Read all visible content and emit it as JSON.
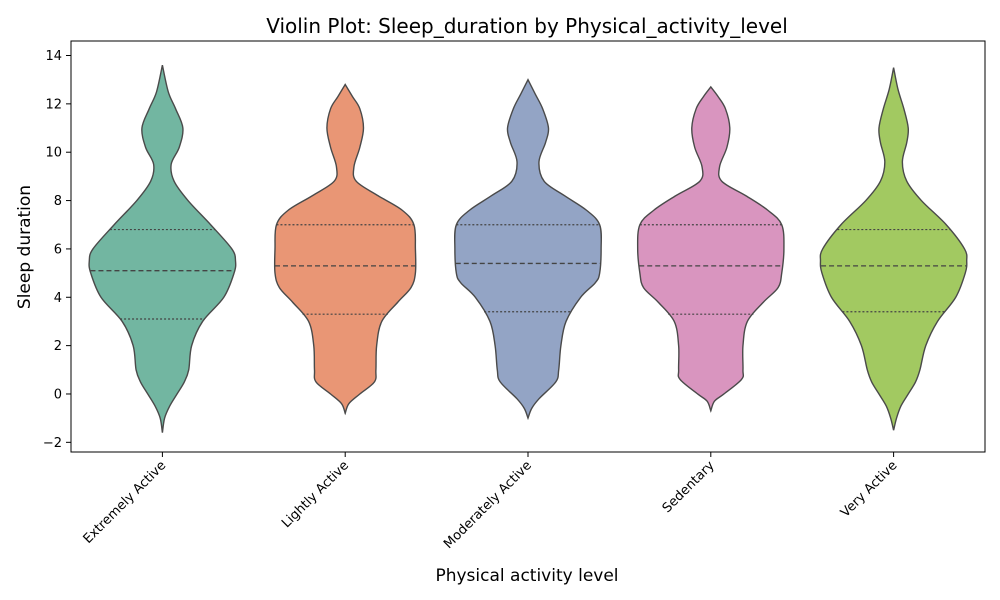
{
  "chart_data": {
    "type": "violin",
    "title": "Violin Plot: Sleep_duration by Physical_activity_level",
    "xlabel": "Physical activity level",
    "ylabel": "Sleep duration",
    "ylim": [
      -2.4,
      14.6
    ],
    "yticks": [
      -2,
      0,
      2,
      4,
      6,
      8,
      10,
      12,
      14
    ],
    "ytick_labels": [
      "−2",
      "0",
      "2",
      "4",
      "6",
      "8",
      "10",
      "12",
      "14"
    ],
    "grid": false,
    "inner": "quartile",
    "categories": [
      "Extremely Active",
      "Lightly Active",
      "Moderately Active",
      "Sedentary",
      "Very Active"
    ],
    "series": [
      {
        "category": "Extremely Active",
        "color": "#72b6a1",
        "median": 5.1,
        "q1": 3.1,
        "q3": 6.8,
        "profile": [
          [
            -1.6,
            0.0
          ],
          [
            -1.0,
            0.03
          ],
          [
            -0.5,
            0.1
          ],
          [
            0.0,
            0.2
          ],
          [
            0.5,
            0.3
          ],
          [
            1.0,
            0.36
          ],
          [
            2.0,
            0.4
          ],
          [
            3.0,
            0.55
          ],
          [
            4.0,
            0.84
          ],
          [
            5.0,
            0.98
          ],
          [
            5.5,
            1.0
          ],
          [
            6.0,
            0.95
          ],
          [
            7.0,
            0.66
          ],
          [
            8.0,
            0.35
          ],
          [
            8.8,
            0.16
          ],
          [
            9.5,
            0.12
          ],
          [
            10.2,
            0.23
          ],
          [
            11.0,
            0.28
          ],
          [
            11.8,
            0.18
          ],
          [
            12.5,
            0.08
          ],
          [
            13.6,
            0.0
          ]
        ]
      },
      {
        "category": "Lightly Active",
        "color": "#e99675",
        "median": 5.3,
        "q1": 3.3,
        "q3": 7.0,
        "profile": [
          [
            -0.8,
            0.0
          ],
          [
            -0.4,
            0.05
          ],
          [
            0.0,
            0.2
          ],
          [
            0.5,
            0.4
          ],
          [
            1.0,
            0.42
          ],
          [
            2.0,
            0.43
          ],
          [
            3.0,
            0.5
          ],
          [
            3.8,
            0.72
          ],
          [
            4.4,
            0.9
          ],
          [
            5.0,
            0.96
          ],
          [
            6.0,
            0.96
          ],
          [
            7.0,
            0.94
          ],
          [
            7.6,
            0.78
          ],
          [
            8.2,
            0.45
          ],
          [
            8.8,
            0.15
          ],
          [
            9.4,
            0.12
          ],
          [
            10.2,
            0.2
          ],
          [
            11.0,
            0.25
          ],
          [
            11.8,
            0.2
          ],
          [
            12.3,
            0.1
          ],
          [
            12.8,
            0.0
          ]
        ]
      },
      {
        "category": "Moderately Active",
        "color": "#93a4c5",
        "median": 5.4,
        "q1": 3.4,
        "q3": 7.0,
        "profile": [
          [
            -1.0,
            0.0
          ],
          [
            -0.6,
            0.05
          ],
          [
            -0.2,
            0.15
          ],
          [
            0.5,
            0.38
          ],
          [
            1.0,
            0.42
          ],
          [
            2.0,
            0.45
          ],
          [
            3.0,
            0.52
          ],
          [
            4.0,
            0.72
          ],
          [
            4.6,
            0.92
          ],
          [
            5.0,
            0.98
          ],
          [
            6.0,
            1.0
          ],
          [
            7.0,
            0.98
          ],
          [
            7.6,
            0.8
          ],
          [
            8.2,
            0.5
          ],
          [
            8.8,
            0.22
          ],
          [
            9.6,
            0.15
          ],
          [
            10.4,
            0.24
          ],
          [
            11.0,
            0.28
          ],
          [
            11.8,
            0.2
          ],
          [
            12.4,
            0.1
          ],
          [
            13.0,
            0.0
          ]
        ]
      },
      {
        "category": "Sedentary",
        "color": "#d995bf",
        "median": 5.3,
        "q1": 3.3,
        "q3": 7.0,
        "profile": [
          [
            -0.7,
            0.0
          ],
          [
            -0.3,
            0.05
          ],
          [
            0.0,
            0.18
          ],
          [
            0.6,
            0.42
          ],
          [
            1.0,
            0.44
          ],
          [
            2.0,
            0.44
          ],
          [
            3.0,
            0.5
          ],
          [
            3.8,
            0.72
          ],
          [
            4.4,
            0.92
          ],
          [
            5.0,
            0.97
          ],
          [
            6.0,
            1.0
          ],
          [
            7.0,
            0.97
          ],
          [
            7.6,
            0.78
          ],
          [
            8.2,
            0.48
          ],
          [
            8.8,
            0.15
          ],
          [
            9.4,
            0.12
          ],
          [
            10.2,
            0.22
          ],
          [
            11.0,
            0.26
          ],
          [
            11.8,
            0.2
          ],
          [
            12.3,
            0.1
          ],
          [
            12.7,
            0.0
          ]
        ]
      },
      {
        "category": "Very Active",
        "color": "#a2c961",
        "median": 5.3,
        "q1": 3.4,
        "q3": 6.8,
        "profile": [
          [
            -1.5,
            0.0
          ],
          [
            -1.0,
            0.04
          ],
          [
            -0.5,
            0.1
          ],
          [
            0.0,
            0.2
          ],
          [
            0.5,
            0.3
          ],
          [
            1.0,
            0.36
          ],
          [
            2.0,
            0.44
          ],
          [
            3.0,
            0.6
          ],
          [
            4.0,
            0.85
          ],
          [
            5.0,
            0.98
          ],
          [
            5.5,
            1.0
          ],
          [
            6.0,
            0.97
          ],
          [
            7.0,
            0.72
          ],
          [
            8.0,
            0.38
          ],
          [
            8.8,
            0.18
          ],
          [
            9.6,
            0.12
          ],
          [
            10.4,
            0.18
          ],
          [
            11.0,
            0.2
          ],
          [
            11.8,
            0.14
          ],
          [
            12.6,
            0.06
          ],
          [
            13.5,
            0.0
          ]
        ]
      }
    ]
  }
}
